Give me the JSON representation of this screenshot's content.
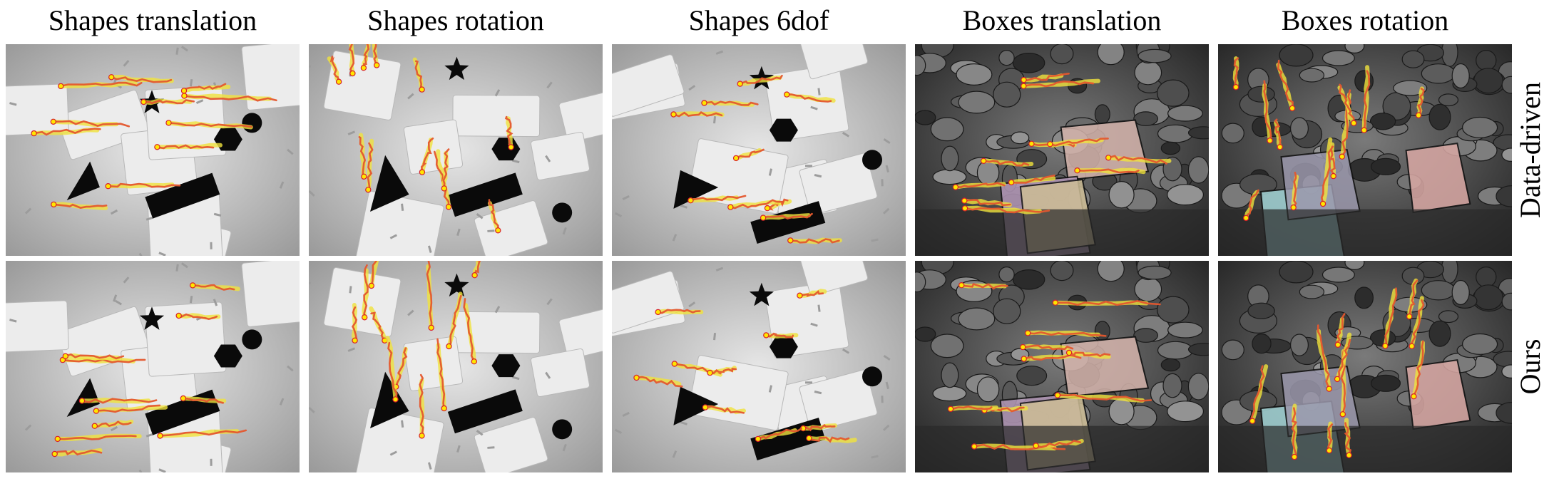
{
  "columns": [
    {
      "label": "Shapes translation",
      "scene": "shapes"
    },
    {
      "label": "Shapes rotation",
      "scene": "shapes"
    },
    {
      "label": "Shapes 6dof",
      "scene": "shapes"
    },
    {
      "label": "Boxes translation",
      "scene": "boxes"
    },
    {
      "label": "Boxes rotation",
      "scene": "boxes"
    }
  ],
  "rows": [
    {
      "label": "Data-driven"
    },
    {
      "label": "Ours"
    }
  ],
  "colors": {
    "ground_truth_track": "#f0e23c",
    "prediction_track": "#e4572e",
    "track_start_dot": "#ffe600",
    "track_end_dot": "#d8202a",
    "shapes_background": "#d4d4d4",
    "boxes_background": "#5a5a5a"
  }
}
